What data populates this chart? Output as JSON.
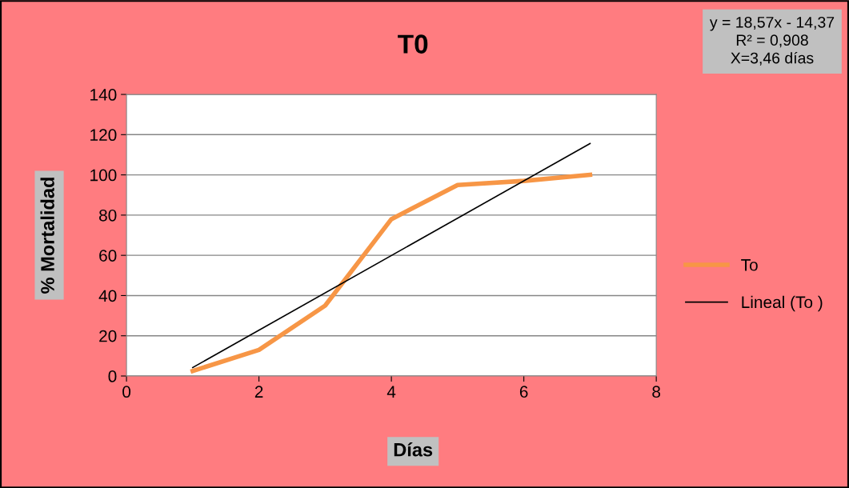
{
  "chart_data": {
    "type": "line",
    "title": "T0",
    "xlabel": "Días",
    "ylabel": "% Mortalidad",
    "x": [
      1,
      2,
      3,
      4,
      5,
      6,
      7
    ],
    "series": [
      {
        "name": "To",
        "color": "#f79646",
        "values": [
          2.5,
          13,
          35,
          78,
          95,
          97,
          100
        ]
      },
      {
        "name": "Lineal (To )",
        "color": "#000000",
        "type": "line",
        "x": [
          1,
          7
        ],
        "values": [
          4.2,
          115.6
        ]
      }
    ],
    "xlim": [
      0,
      8
    ],
    "xticks": [
      0,
      2,
      4,
      6,
      8
    ],
    "ylim": [
      0,
      140
    ],
    "yticks": [
      0,
      20,
      40,
      60,
      80,
      100,
      120,
      140
    ],
    "grid": "y",
    "legend": "right",
    "marker": "none",
    "line_style": "solid",
    "annotations": [
      "y = 18,57x - 14,37\nR² = 0,908\nX=3,46 días"
    ]
  }
}
